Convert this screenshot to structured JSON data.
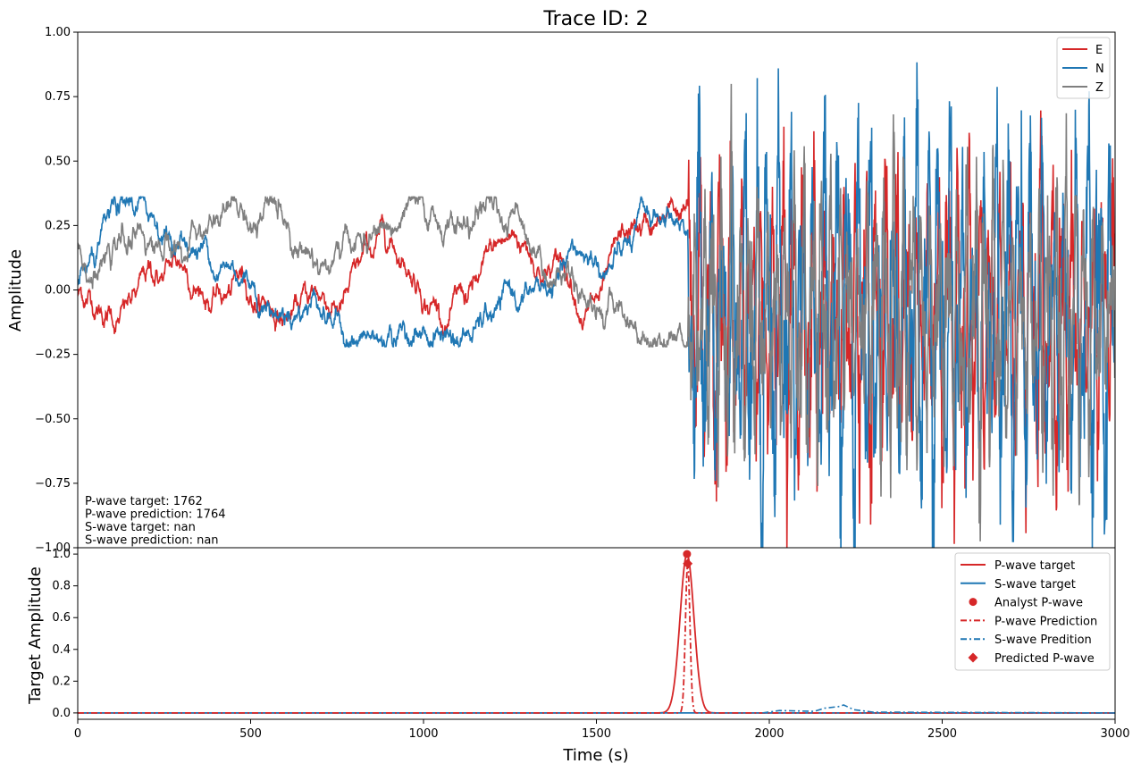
{
  "chart_data": [
    {
      "type": "line",
      "title": "Trace ID: 2",
      "xlabel": "",
      "ylabel": "Amplitude",
      "xlim": [
        0,
        3000
      ],
      "ylim": [
        -1.0,
        1.0
      ],
      "yticks": [
        -1.0,
        -0.75,
        -0.5,
        -0.25,
        0.0,
        0.25,
        0.5,
        0.75,
        1.0
      ],
      "ytick_labels": [
        "−1.00",
        "−0.75",
        "−0.50",
        "−0.25",
        "0.00",
        "0.25",
        "0.50",
        "0.75",
        "1.00"
      ],
      "grid": false,
      "legend": "top-right",
      "series": [
        {
          "name": "E",
          "color": "#d62728"
        },
        {
          "name": "N",
          "color": "#1f77b4"
        },
        {
          "name": "Z",
          "color": "#7f7f7f"
        }
      ],
      "annotations": [
        "P-wave target: 1762",
        "P-wave prediction: 1764",
        "S-wave target: nan",
        "S-wave prediction: nan"
      ]
    },
    {
      "type": "line",
      "title": "",
      "xlabel": "Time (s)",
      "ylabel": "Target Amplitude",
      "xlim": [
        0,
        3000
      ],
      "ylim": [
        -0.04,
        1.04
      ],
      "xticks": [
        0,
        500,
        1000,
        1500,
        2000,
        2500,
        3000
      ],
      "xtick_labels": [
        "0",
        "500",
        "1000",
        "1500",
        "2000",
        "2500",
        "3000"
      ],
      "yticks": [
        0.0,
        0.2,
        0.4,
        0.6,
        0.8,
        1.0
      ],
      "ytick_labels": [
        "0.0",
        "0.2",
        "0.4",
        "0.6",
        "0.8",
        "1.0"
      ],
      "grid": false,
      "legend": "top-right",
      "series": [
        {
          "name": "P-wave target",
          "color": "#d62728",
          "style": "solid",
          "center": 1762,
          "peak": 1.0,
          "x": [
            1600,
            1650,
            1700,
            1730,
            1762,
            1795,
            1825,
            1875,
            1925
          ],
          "y": [
            0.0,
            0.01,
            0.13,
            0.56,
            1.0,
            0.56,
            0.13,
            0.01,
            0.0
          ]
        },
        {
          "name": "S-wave target",
          "color": "#1f77b4",
          "style": "solid",
          "x": [
            0,
            3000
          ],
          "y": [
            0.0,
            0.0
          ]
        },
        {
          "name": "Analyst P-wave",
          "color": "#d62728",
          "style": "marker-circle",
          "x": [
            1762
          ],
          "y": [
            1.0
          ]
        },
        {
          "name": "P-wave Prediction",
          "color": "#d62728",
          "style": "dashdot",
          "center": 1764,
          "peak": 0.94,
          "x": [
            1730,
            1745,
            1755,
            1764,
            1773,
            1783,
            1800
          ],
          "y": [
            0.0,
            0.1,
            0.52,
            0.94,
            0.52,
            0.1,
            0.0
          ]
        },
        {
          "name": "S-wave Predition",
          "color": "#1f77b4",
          "style": "dashdot",
          "x": [
            1980,
            2030,
            2130,
            2160,
            2200,
            2215,
            2245,
            2300,
            3000
          ],
          "y": [
            0.0,
            0.015,
            0.01,
            0.03,
            0.04,
            0.05,
            0.02,
            0.005,
            0.0
          ]
        },
        {
          "name": "Predicted P-wave",
          "color": "#d62728",
          "style": "marker-diamond",
          "x": [
            1764
          ],
          "y": [
            0.94
          ]
        }
      ]
    }
  ]
}
